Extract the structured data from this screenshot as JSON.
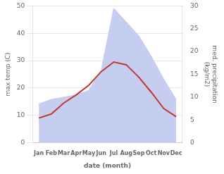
{
  "chart_data": {
    "type": "line",
    "categories": [
      "Jan",
      "Feb",
      "Mar",
      "Apr",
      "May",
      "Jun",
      "Jul",
      "Aug",
      "Sep",
      "Oct",
      "Nov",
      "Dec"
    ],
    "series": [
      {
        "type": "area",
        "color": "#c5cef0",
        "axis": "y2",
        "values": [
          8.5,
          9.5,
          10.0,
          10.5,
          11.5,
          16.0,
          29.5,
          26.5,
          23.5,
          19.0,
          14.0,
          9.5
        ]
      },
      {
        "type": "line",
        "color": "#c0392b",
        "values": [
          9.0,
          10.5,
          14.5,
          17.5,
          21.0,
          26.0,
          29.5,
          28.5,
          24.0,
          18.5,
          12.5,
          9.5
        ]
      }
    ],
    "xlabel": "date (month)",
    "ylabel": "max temp (C)",
    "y2label": "med. precipitation\n(kg/m2)",
    "ylim": [
      0,
      50
    ],
    "yticks": [
      0,
      10,
      20,
      30,
      40,
      50
    ],
    "y2lim": [
      0,
      30
    ],
    "y2ticks": [
      0,
      5,
      10,
      15,
      20,
      25,
      30
    ],
    "grid": true
  }
}
